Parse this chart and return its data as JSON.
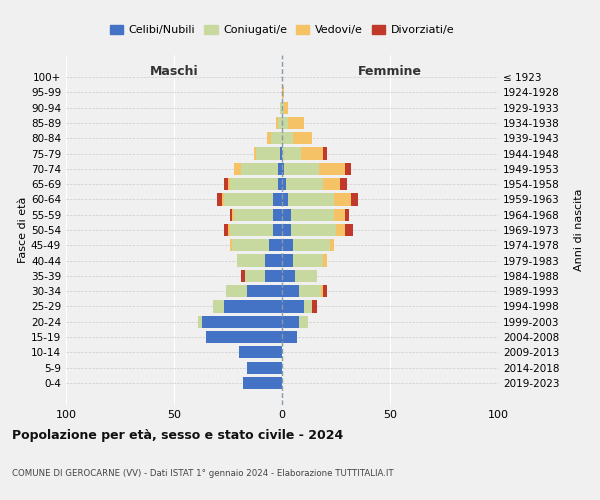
{
  "age_groups": [
    "0-4",
    "5-9",
    "10-14",
    "15-19",
    "20-24",
    "25-29",
    "30-34",
    "35-39",
    "40-44",
    "45-49",
    "50-54",
    "55-59",
    "60-64",
    "65-69",
    "70-74",
    "75-79",
    "80-84",
    "85-89",
    "90-94",
    "95-99",
    "100+"
  ],
  "birth_years": [
    "2019-2023",
    "2014-2018",
    "2009-2013",
    "2004-2008",
    "1999-2003",
    "1994-1998",
    "1989-1993",
    "1984-1988",
    "1979-1983",
    "1974-1978",
    "1969-1973",
    "1964-1968",
    "1959-1963",
    "1954-1958",
    "1949-1953",
    "1944-1948",
    "1939-1943",
    "1934-1938",
    "1929-1933",
    "1924-1928",
    "≤ 1923"
  ],
  "male": {
    "celibi": [
      18,
      16,
      20,
      35,
      37,
      27,
      16,
      8,
      8,
      6,
      4,
      4,
      4,
      2,
      2,
      1,
      0,
      0,
      0,
      0,
      0
    ],
    "coniugati": [
      0,
      0,
      0,
      0,
      2,
      5,
      10,
      9,
      13,
      17,
      20,
      18,
      23,
      22,
      17,
      11,
      5,
      2,
      1,
      0,
      0
    ],
    "vedovi": [
      0,
      0,
      0,
      0,
      0,
      0,
      0,
      0,
      0,
      1,
      1,
      1,
      1,
      1,
      3,
      1,
      2,
      1,
      0,
      0,
      0
    ],
    "divorziati": [
      0,
      0,
      0,
      0,
      0,
      0,
      0,
      2,
      0,
      0,
      2,
      1,
      2,
      2,
      0,
      0,
      0,
      0,
      0,
      0,
      0
    ]
  },
  "female": {
    "nubili": [
      0,
      0,
      0,
      7,
      8,
      10,
      8,
      6,
      5,
      5,
      4,
      4,
      3,
      2,
      1,
      0,
      0,
      0,
      0,
      0,
      0
    ],
    "coniugate": [
      0,
      0,
      0,
      0,
      4,
      4,
      10,
      10,
      14,
      17,
      21,
      20,
      21,
      17,
      16,
      9,
      5,
      3,
      1,
      0,
      0
    ],
    "vedove": [
      0,
      0,
      0,
      0,
      0,
      0,
      1,
      0,
      2,
      2,
      4,
      5,
      8,
      8,
      12,
      10,
      9,
      7,
      2,
      1,
      0
    ],
    "divorziate": [
      0,
      0,
      0,
      0,
      0,
      2,
      2,
      0,
      0,
      0,
      4,
      2,
      3,
      3,
      3,
      2,
      0,
      0,
      0,
      0,
      0
    ]
  },
  "colors": {
    "celibi_nubili": "#4472C4",
    "coniugati": "#C8D9A0",
    "vedovi": "#F5C265",
    "divorziati": "#C0392B"
  },
  "title1": "Popolazione per età, sesso e stato civile - 2024",
  "title2": "COMUNE DI GEROCARNE (VV) - Dati ISTAT 1° gennaio 2024 - Elaborazione TUTTITALIA.IT",
  "ylabel": "Fasce di età",
  "ylabel2": "Anni di nascita",
  "label_maschi": "Maschi",
  "label_femmine": "Femmine",
  "legend_labels": [
    "Celibi/Nubili",
    "Coniugati/e",
    "Vedovi/e",
    "Divorziati/e"
  ]
}
